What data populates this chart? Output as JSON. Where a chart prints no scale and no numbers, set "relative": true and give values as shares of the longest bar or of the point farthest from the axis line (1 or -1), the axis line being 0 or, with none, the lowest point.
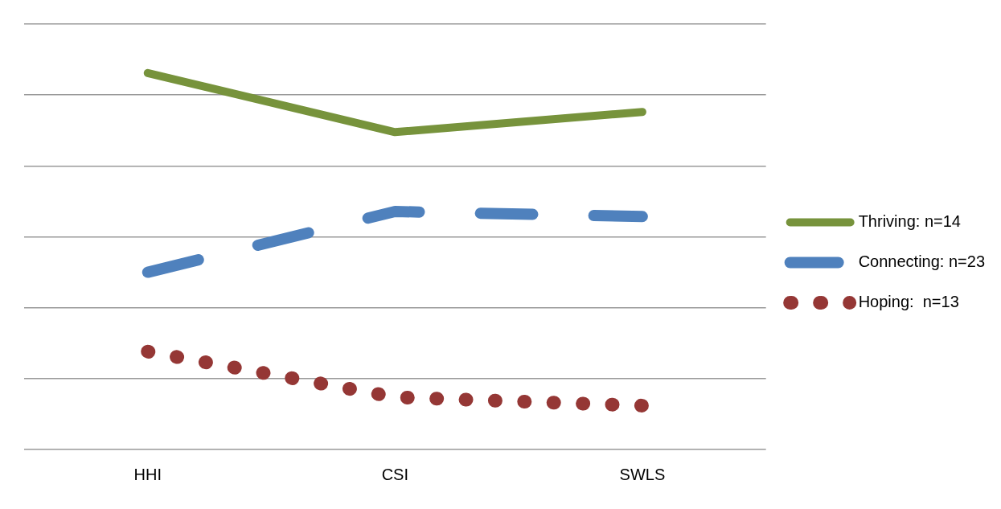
{
  "chart_data": {
    "type": "line",
    "relative": true,
    "categories": [
      "HHI",
      "CSI",
      "SWLS"
    ],
    "grid": "y",
    "legend": "right",
    "marker": "none",
    "series": [
      {
        "name": "Thriving: n=14",
        "color": "#77933c",
        "line_style": "solid",
        "values": [
          0.97,
          0.62,
          0.74
        ]
      },
      {
        "name": "Connecting: n=23",
        "color": "#4f81bd",
        "line_style": "dashed",
        "values": [
          -0.21,
          0.15,
          0.12
        ]
      },
      {
        "name": "Hoping:  n=13",
        "color": "#953735",
        "line_style": "dotted",
        "values": [
          -0.68,
          -0.95,
          -1
        ]
      }
    ]
  }
}
